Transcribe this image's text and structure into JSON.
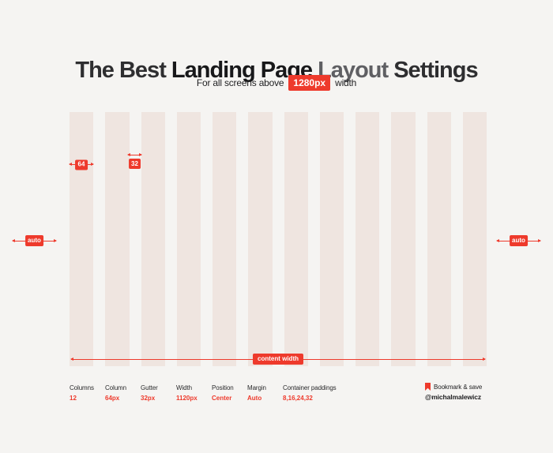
{
  "colors": {
    "accent": "#ee3a2c",
    "background": "#f5f4f2",
    "column_fill": "#efe5e0",
    "title_dark": "#2e2e30",
    "title_bold": "#18181a",
    "title_muted": "#5f5f63",
    "text_dark": "#28282a"
  },
  "title": {
    "part1": "The Best ",
    "part2": "Landing Page ",
    "part3": "Layout ",
    "part4": "Settings"
  },
  "subtitle": {
    "prefix": "For all screens above",
    "badge": "1280px",
    "suffix": "width"
  },
  "grid": {
    "column_count": 12,
    "column_width_label": "64",
    "gutter_width_label": "32",
    "left_margin_label": "auto",
    "right_margin_label": "auto",
    "content_width_label": "content width"
  },
  "stats": [
    {
      "label": "Columns",
      "value": "12"
    },
    {
      "label": "Column",
      "value": "64px"
    },
    {
      "label": "Gutter",
      "value": "32px"
    },
    {
      "label": "Width",
      "value": "1120px"
    },
    {
      "label": "Position",
      "value": "Center"
    },
    {
      "label": "Margin",
      "value": "Auto"
    },
    {
      "label": "Container paddings",
      "value": "8,16,24,32"
    }
  ],
  "footer": {
    "bookmark_label": "Bookmark & save",
    "author_handle": "@michalmalewicz"
  }
}
